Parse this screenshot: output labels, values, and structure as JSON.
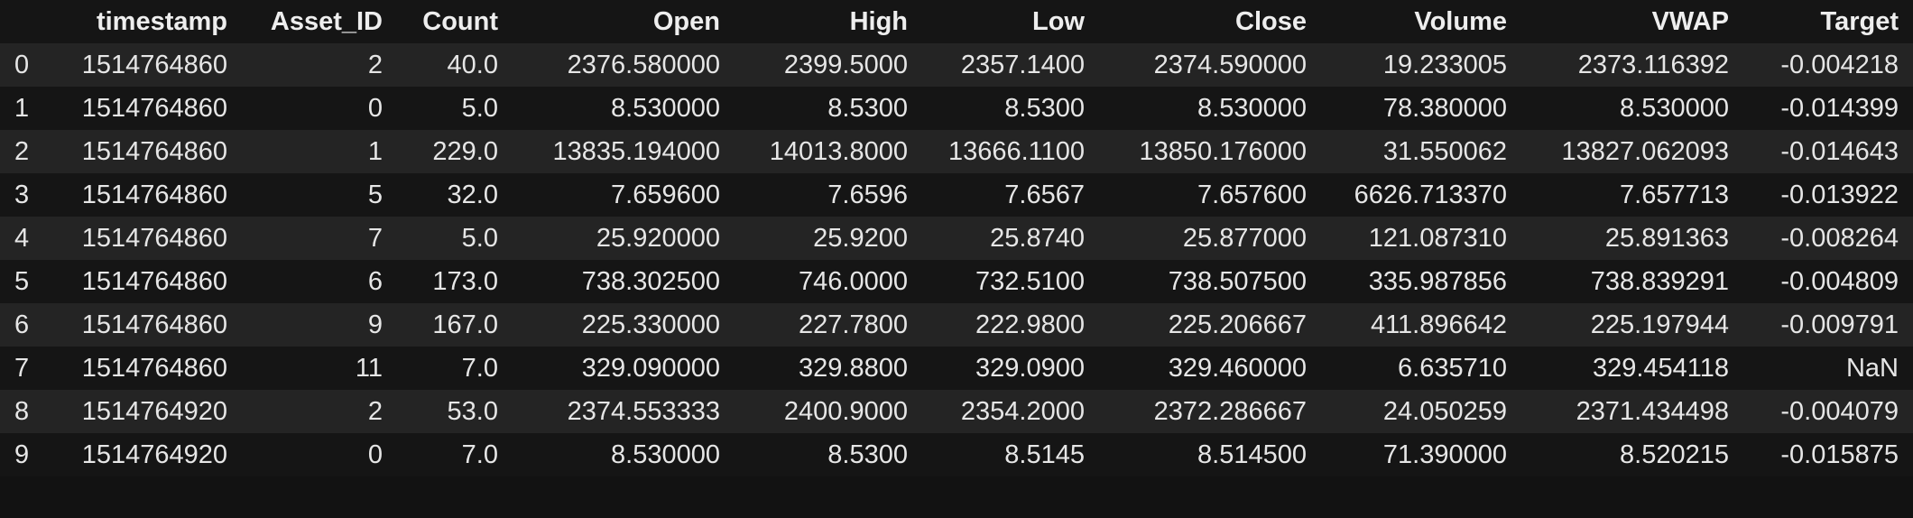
{
  "table": {
    "columns": [
      "",
      "timestamp",
      "Asset_ID",
      "Count",
      "Open",
      "High",
      "Low",
      "Close",
      "Volume",
      "VWAP",
      "Target"
    ],
    "rows": [
      [
        "0",
        "1514764860",
        "2",
        "40.0",
        "2376.580000",
        "2399.5000",
        "2357.1400",
        "2374.590000",
        "19.233005",
        "2373.116392",
        "-0.004218"
      ],
      [
        "1",
        "1514764860",
        "0",
        "5.0",
        "8.530000",
        "8.5300",
        "8.5300",
        "8.530000",
        "78.380000",
        "8.530000",
        "-0.014399"
      ],
      [
        "2",
        "1514764860",
        "1",
        "229.0",
        "13835.194000",
        "14013.8000",
        "13666.1100",
        "13850.176000",
        "31.550062",
        "13827.062093",
        "-0.014643"
      ],
      [
        "3",
        "1514764860",
        "5",
        "32.0",
        "7.659600",
        "7.6596",
        "7.6567",
        "7.657600",
        "6626.713370",
        "7.657713",
        "-0.013922"
      ],
      [
        "4",
        "1514764860",
        "7",
        "5.0",
        "25.920000",
        "25.9200",
        "25.8740",
        "25.877000",
        "121.087310",
        "25.891363",
        "-0.008264"
      ],
      [
        "5",
        "1514764860",
        "6",
        "173.0",
        "738.302500",
        "746.0000",
        "732.5100",
        "738.507500",
        "335.987856",
        "738.839291",
        "-0.004809"
      ],
      [
        "6",
        "1514764860",
        "9",
        "167.0",
        "225.330000",
        "227.7800",
        "222.9800",
        "225.206667",
        "411.896642",
        "225.197944",
        "-0.009791"
      ],
      [
        "7",
        "1514764860",
        "11",
        "7.0",
        "329.090000",
        "329.8800",
        "329.0900",
        "329.460000",
        "6.635710",
        "329.454118",
        "NaN"
      ],
      [
        "8",
        "1514764920",
        "2",
        "53.0",
        "2374.553333",
        "2400.9000",
        "2354.2000",
        "2372.286667",
        "24.050259",
        "2371.434498",
        "-0.004079"
      ],
      [
        "9",
        "1514764920",
        "0",
        "7.0",
        "8.530000",
        "8.5300",
        "8.5145",
        "8.514500",
        "71.390000",
        "8.520215",
        "-0.015875"
      ]
    ]
  },
  "colors": {
    "background": "#121212",
    "row_odd": "#242424",
    "row_even": "#151515",
    "text": "#e6e6e6"
  }
}
